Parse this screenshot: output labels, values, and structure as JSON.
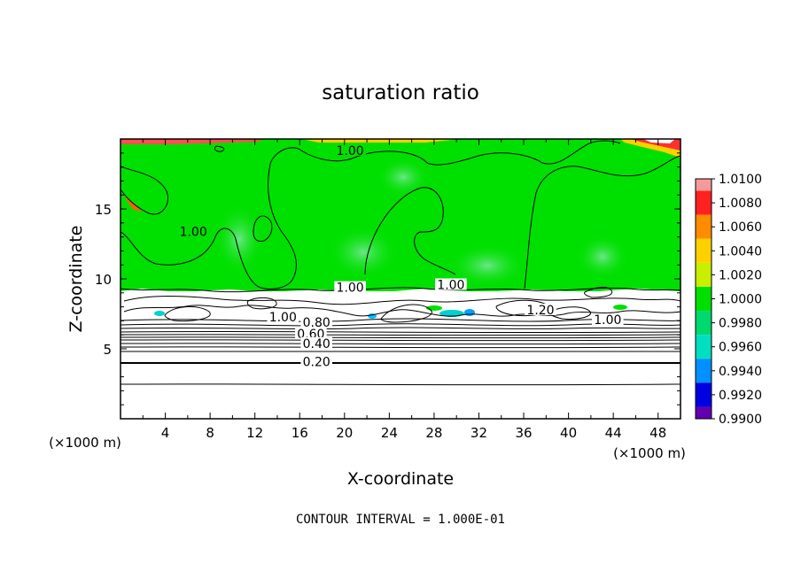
{
  "chart_data": {
    "type": "heatmap",
    "title": "saturation ratio",
    "xlabel": "X-coordinate",
    "ylabel": "Z-coordinate",
    "x_unit": "(×1000 m)",
    "z_unit": "(×1000 m)",
    "xlim": [
      0,
      50
    ],
    "ylim": [
      0,
      20
    ],
    "x_ticks": [
      4,
      8,
      12,
      16,
      20,
      24,
      28,
      32,
      36,
      40,
      44,
      48
    ],
    "y_ticks": [
      5,
      10,
      15
    ],
    "colorbar": {
      "levels": [
        "1.0100",
        "1.0080",
        "1.0060",
        "1.0040",
        "1.0020",
        "1.0000",
        "0.9980",
        "0.9960",
        "0.9940",
        "0.9920",
        "0.9900"
      ],
      "colors": [
        "#f49a9a",
        "#ff2020",
        "#ff8c00",
        "#ffd000",
        "#c8ee00",
        "#00e000",
        "#00d870",
        "#00e0c0",
        "#0090ff",
        "#0000e0",
        "#6000b0"
      ]
    },
    "contour_labels": [
      {
        "text": "1.00",
        "x": 20.5,
        "z": 19.0
      },
      {
        "text": "1.00",
        "x": 6.5,
        "z": 13.2
      },
      {
        "text": "1.00",
        "x": 29.5,
        "z": 9.4
      },
      {
        "text": "1.00",
        "x": 20.5,
        "z": 9.2
      },
      {
        "text": "1.00",
        "x": 14.5,
        "z": 7.1
      },
      {
        "text": "1.20",
        "x": 37.5,
        "z": 7.6
      },
      {
        "text": "1.00",
        "x": 43.5,
        "z": 6.9
      },
      {
        "text": "0.80",
        "x": 17.5,
        "z": 6.7
      },
      {
        "text": "0.60",
        "x": 17.0,
        "z": 5.9
      },
      {
        "text": "0.40",
        "x": 17.5,
        "z": 5.2
      },
      {
        "text": "0.20",
        "x": 17.5,
        "z": 3.9
      }
    ],
    "contour_interval_text": "CONTOUR INTERVAL = 1.000E-01"
  }
}
